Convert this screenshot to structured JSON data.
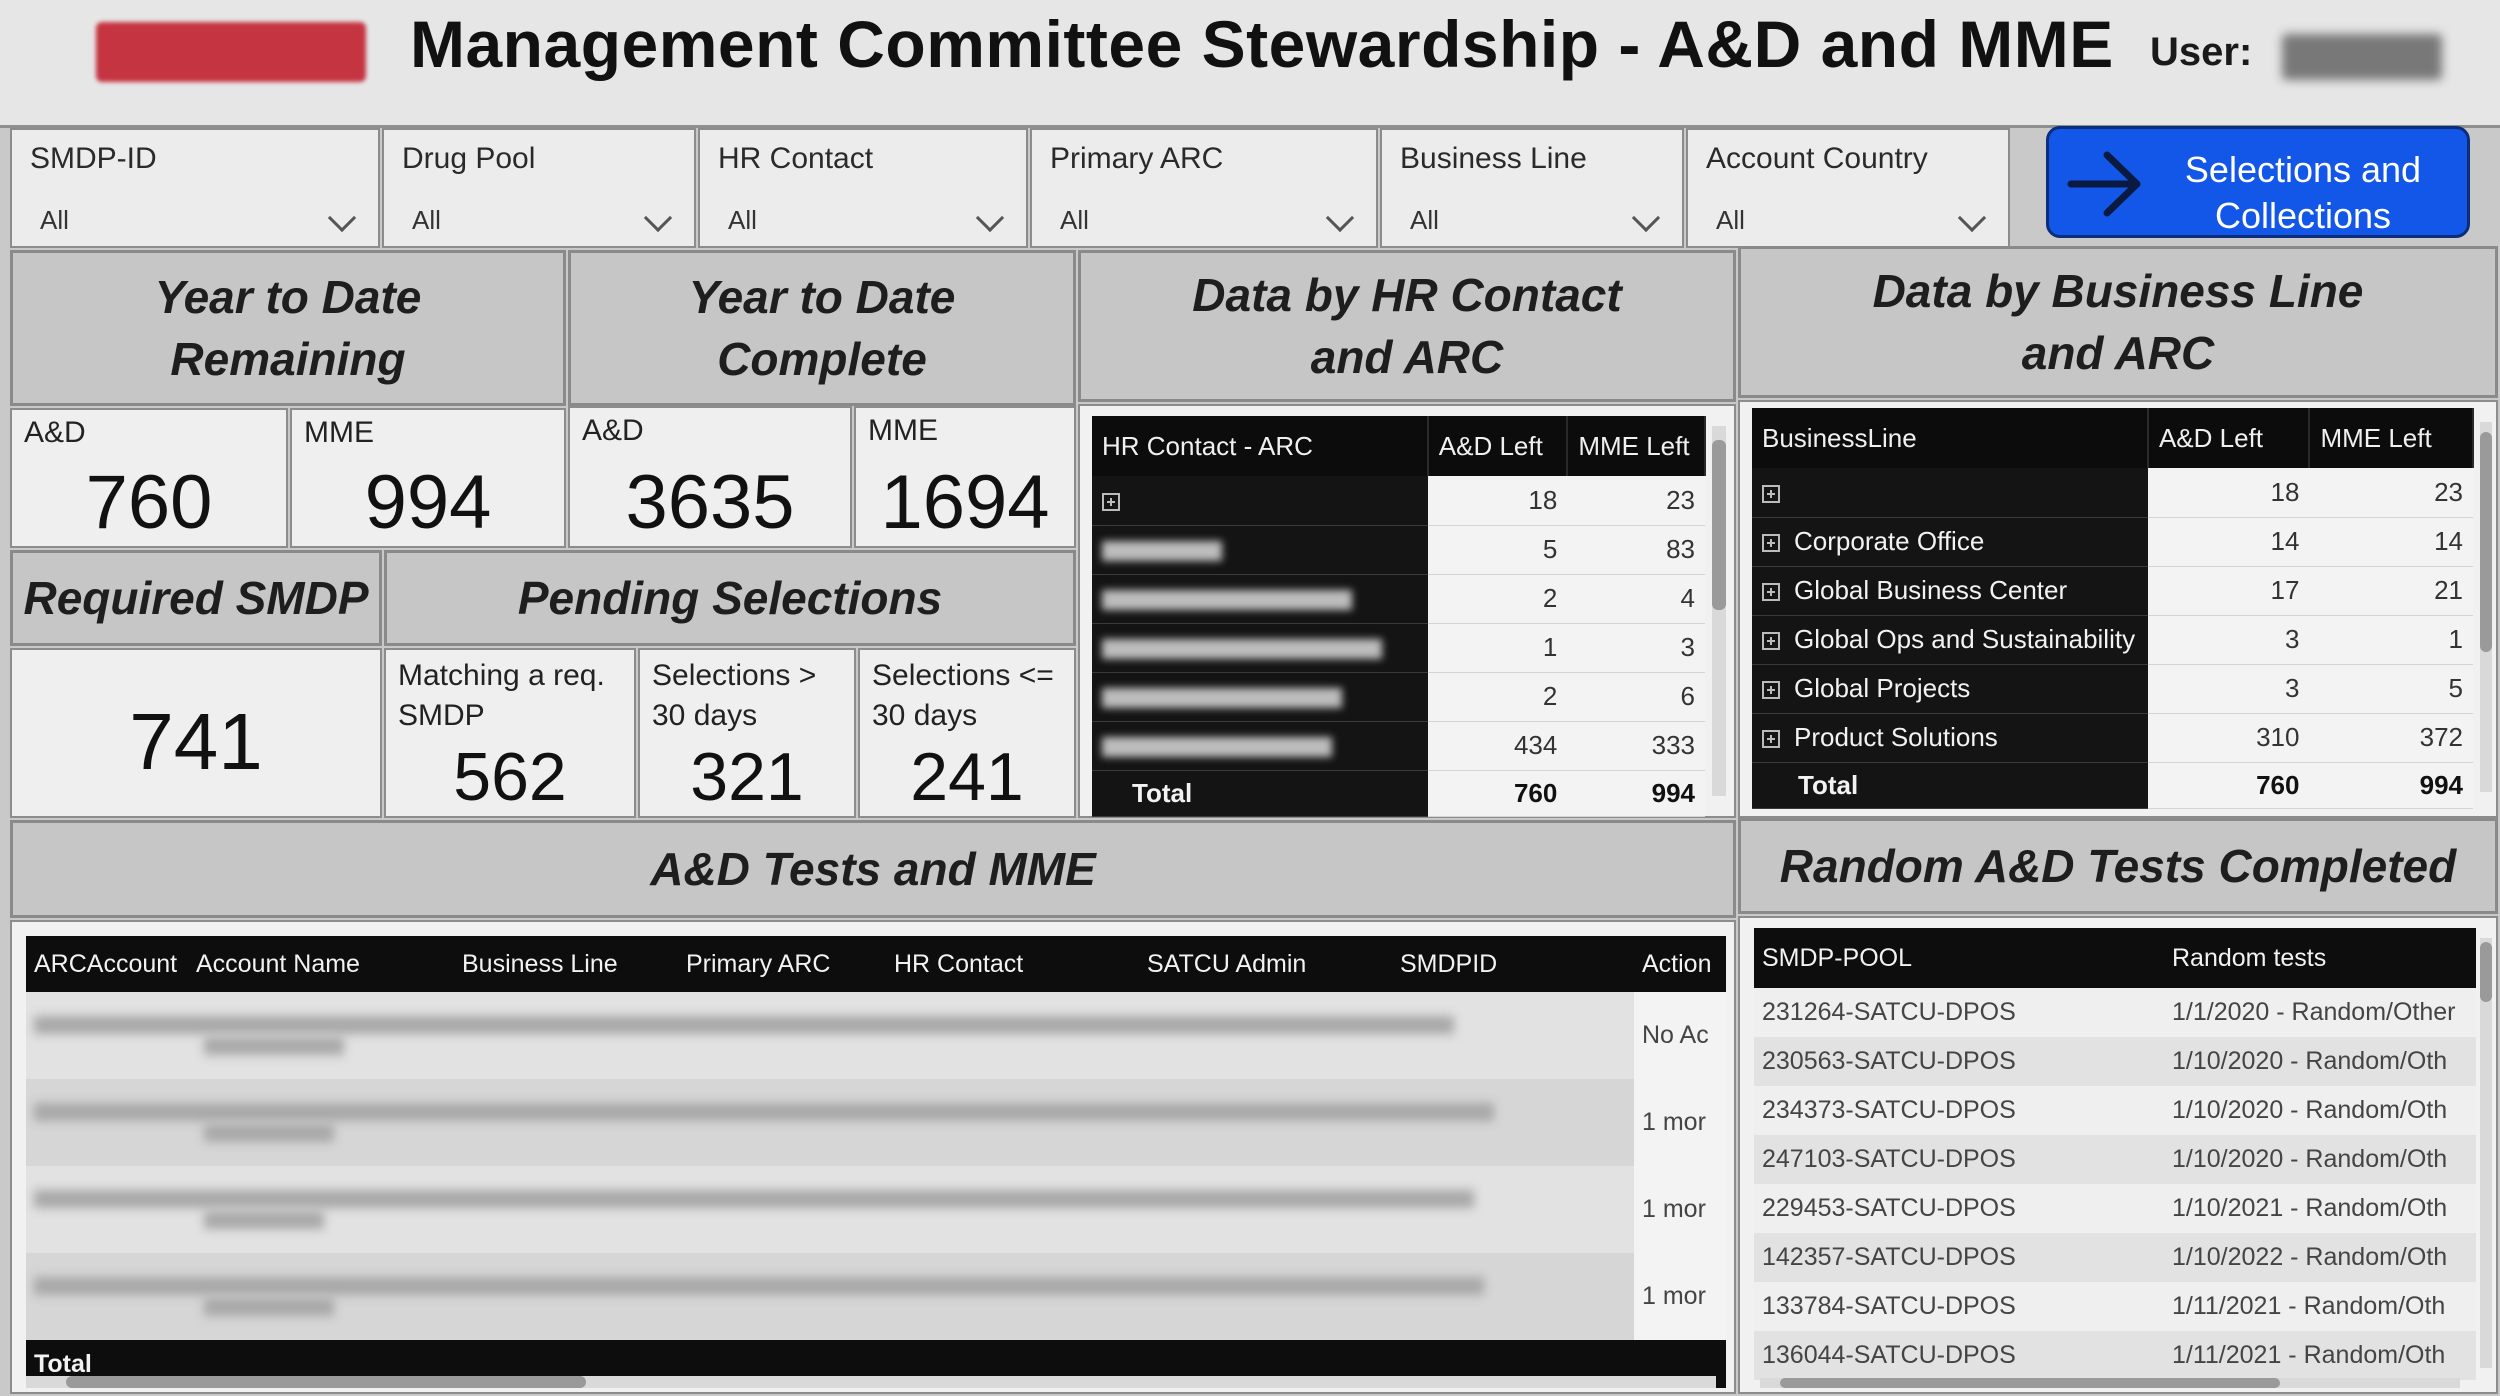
{
  "header": {
    "title": "Management Committee Stewardship - A&D and MME",
    "user_label": "User:"
  },
  "slicers": [
    {
      "label": "SMDP-ID",
      "value": "All"
    },
    {
      "label": "Drug Pool",
      "value": "All"
    },
    {
      "label": "HR Contact",
      "value": "All"
    },
    {
      "label": "Primary ARC",
      "value": "All"
    },
    {
      "label": "Business Line",
      "value": "All"
    },
    {
      "label": "Account Country",
      "value": "All"
    }
  ],
  "selections_button": {
    "label": "Selections and Collections"
  },
  "sections": {
    "ytd_remaining": [
      "Year to Date",
      "Remaining"
    ],
    "ytd_complete": [
      "Year to Date",
      "Complete"
    ],
    "hr_arc": [
      "Data by HR Contact",
      "and ARC"
    ],
    "bl_arc": [
      "Data by Business Line",
      "and ARC"
    ],
    "required_smdp": "Required SMDP",
    "pending": "Pending Selections",
    "tests_mme": "A&D Tests and MME",
    "random": "Random A&D Tests Completed"
  },
  "kpis": {
    "rem_ad": {
      "label": "A&D",
      "value": "760"
    },
    "rem_mme": {
      "label": "MME",
      "value": "994"
    },
    "comp_ad": {
      "label": "A&D",
      "value": "3635"
    },
    "comp_mme": {
      "label": "MME",
      "value": "1694"
    },
    "required": {
      "value": "741"
    },
    "matching": {
      "label": "Matching a req. SMDP",
      "value": "562"
    },
    "sel_gt30": {
      "label": "Selections > 30 days",
      "value": "321"
    },
    "sel_le30": {
      "label": "Selections <= 30 days",
      "value": "241"
    }
  },
  "hr_table": {
    "headers": [
      "HR Contact - ARC",
      "A&D Left",
      "MME Left"
    ],
    "rows": [
      {
        "ad": "18",
        "mme": "23"
      },
      {
        "ad": "5",
        "mme": "83"
      },
      {
        "ad": "2",
        "mme": "4"
      },
      {
        "ad": "1",
        "mme": "3"
      },
      {
        "ad": "2",
        "mme": "6"
      },
      {
        "ad": "434",
        "mme": "333"
      }
    ],
    "total": {
      "label": "Total",
      "ad": "760",
      "mme": "994"
    }
  },
  "bl_table": {
    "headers": [
      "BusinessLine",
      "A&D Left",
      "MME Left"
    ],
    "rows": [
      {
        "name": "",
        "ad": "18",
        "mme": "23"
      },
      {
        "name": "Corporate Office",
        "ad": "14",
        "mme": "14"
      },
      {
        "name": "Global Business Center",
        "ad": "17",
        "mme": "21"
      },
      {
        "name": "Global Ops and Sustainability",
        "ad": "3",
        "mme": "1"
      },
      {
        "name": "Global Projects",
        "ad": "3",
        "mme": "5"
      },
      {
        "name": "Product Solutions",
        "ad": "310",
        "mme": "372"
      }
    ],
    "total": {
      "label": "Total",
      "ad": "760",
      "mme": "994"
    }
  },
  "tests_table": {
    "headers": [
      "ARCAccount",
      "Account Name",
      "Business Line",
      "Primary ARC",
      "HR Contact",
      "SATCU Admin",
      "SMDPID",
      "Action"
    ],
    "actions": [
      "No Ac",
      "1 mor",
      "1 mor",
      "1 mor"
    ],
    "total_label": "Total"
  },
  "random_table": {
    "headers": [
      "SMDP-POOL",
      "Random tests"
    ],
    "rows": [
      {
        "pool": "231264-SATCU-DPOS",
        "test": "1/1/2020 - Random/Other"
      },
      {
        "pool": "230563-SATCU-DPOS",
        "test": "1/10/2020 - Random/Oth"
      },
      {
        "pool": "234373-SATCU-DPOS",
        "test": "1/10/2020 - Random/Oth"
      },
      {
        "pool": "247103-SATCU-DPOS",
        "test": "1/10/2020 - Random/Oth"
      },
      {
        "pool": "229453-SATCU-DPOS",
        "test": "1/10/2021 - Random/Oth"
      },
      {
        "pool": "142357-SATCU-DPOS",
        "test": "1/10/2022 - Random/Oth"
      },
      {
        "pool": "133784-SATCU-DPOS",
        "test": "1/11/2021 - Random/Oth"
      },
      {
        "pool": "136044-SATCU-DPOS",
        "test": "1/11/2021 - Random/Oth"
      }
    ]
  }
}
